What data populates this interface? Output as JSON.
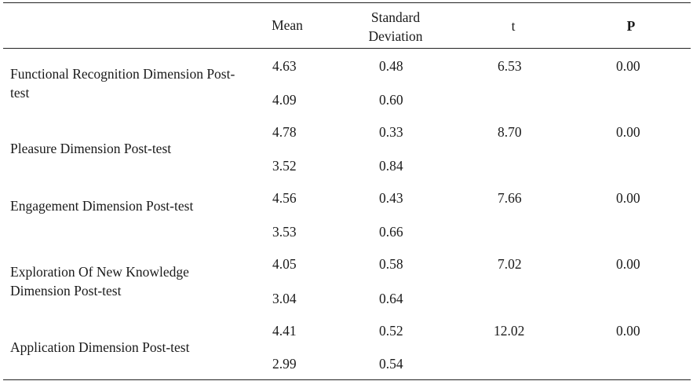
{
  "headers": {
    "blank": "",
    "mean": "Mean",
    "sd": "Standard Deviation",
    "t": "t",
    "p": "P"
  },
  "rows": [
    {
      "label": "Functional Recognition Dimension Post-test",
      "mean": [
        "4.63",
        "4.09"
      ],
      "sd": [
        "0.48",
        "0.60"
      ],
      "t": "6.53",
      "p": "0.00"
    },
    {
      "label": "Pleasure Dimension Post-test",
      "mean": [
        "4.78",
        "3.52"
      ],
      "sd": [
        "0.33",
        "0.84"
      ],
      "t": "8.70",
      "p": "0.00"
    },
    {
      "label": "Engagement Dimension Post-test",
      "mean": [
        "4.56",
        "3.53"
      ],
      "sd": [
        "0.43",
        "0.66"
      ],
      "t": "7.66",
      "p": "0.00"
    },
    {
      "label": "Exploration Of New Knowledge Dimension Post-test",
      "mean": [
        "4.05",
        "3.04"
      ],
      "sd": [
        "0.58",
        "0.64"
      ],
      "t": "7.02",
      "p": "0.00"
    },
    {
      "label": "Application Dimension Post-test",
      "mean": [
        "4.41",
        "2.99"
      ],
      "sd": [
        "0.52",
        "0.54"
      ],
      "t": "12.02",
      "p": "0.00"
    }
  ]
}
